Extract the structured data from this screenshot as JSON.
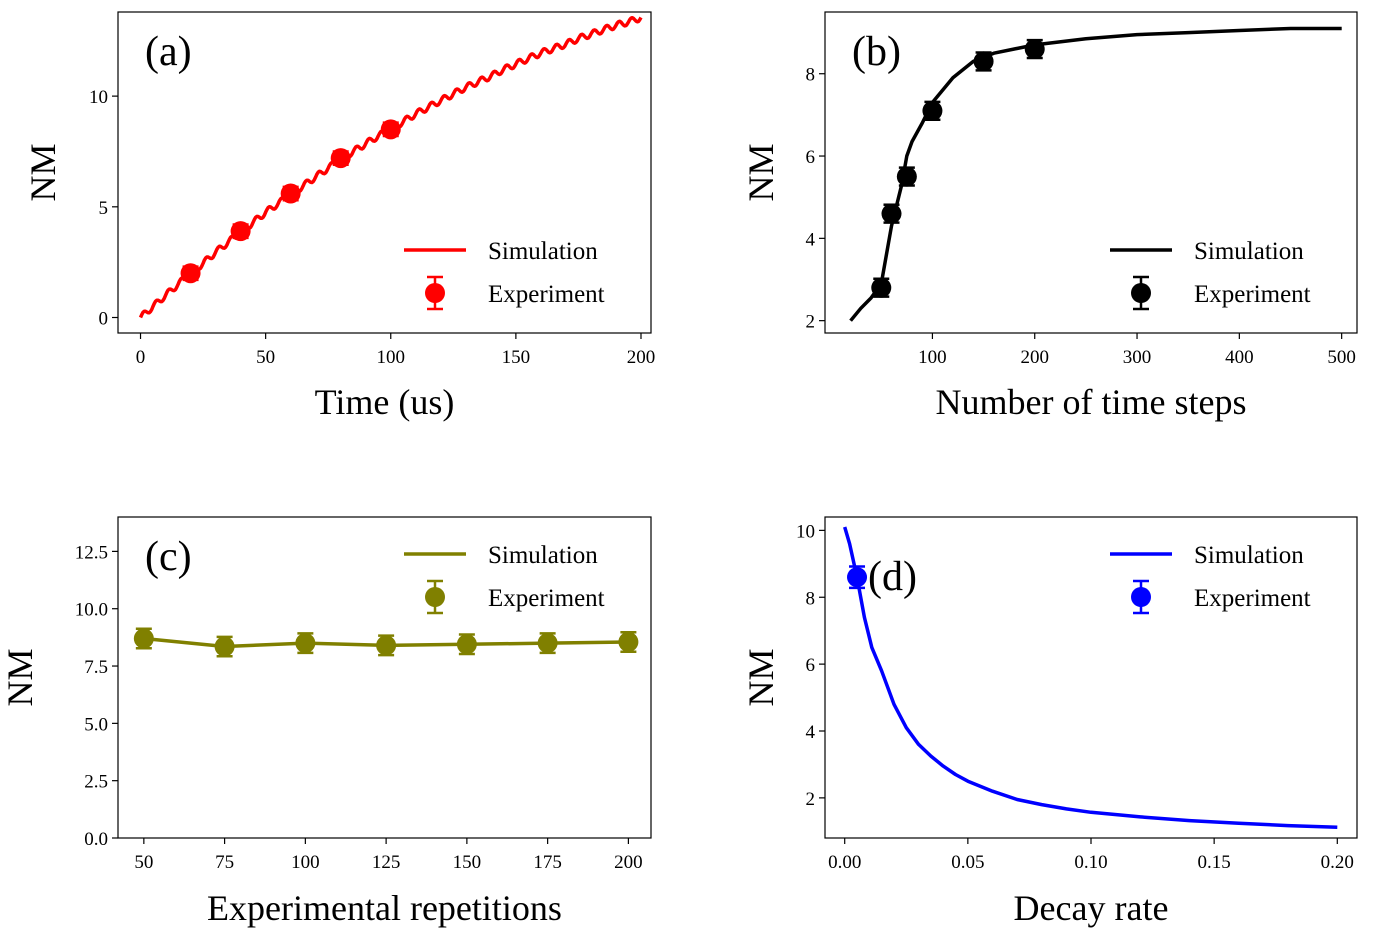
{
  "chart_data": [
    {
      "panel": "(a)",
      "type": "line",
      "xlabel": "Time (us)",
      "ylabel": "NM",
      "xlim": [
        -9,
        204
      ],
      "ylim": [
        -0.7,
        13.8
      ],
      "xticks": [
        0,
        50,
        100,
        150,
        200
      ],
      "yticks": [
        0,
        5,
        10
      ],
      "tick_decimals": 0,
      "color": "#ff0000",
      "legend_position": "lower-right",
      "simulation_x": [
        0,
        5,
        10,
        15,
        20,
        25,
        30,
        35,
        40,
        45,
        50,
        55,
        60,
        65,
        70,
        75,
        80,
        85,
        90,
        95,
        100,
        105,
        110,
        115,
        120,
        125,
        130,
        135,
        140,
        145,
        150,
        155,
        160,
        165,
        170,
        175,
        180,
        185,
        190,
        195,
        200
      ],
      "simulation_y": [
        0,
        0.5,
        1.0,
        1.5,
        2.0,
        2.45,
        2.95,
        3.4,
        3.85,
        4.3,
        4.75,
        5.15,
        5.55,
        5.95,
        6.35,
        6.75,
        7.15,
        7.5,
        7.85,
        8.2,
        8.5,
        8.85,
        9.2,
        9.5,
        9.8,
        10.1,
        10.4,
        10.65,
        10.9,
        11.2,
        11.45,
        11.7,
        11.95,
        12.15,
        12.35,
        12.6,
        12.8,
        13.0,
        13.2,
        13.35,
        13.55
      ],
      "wiggle": 0.14,
      "experiment_x": [
        20,
        40,
        60,
        80,
        100
      ],
      "experiment_y": [
        2.0,
        3.9,
        5.6,
        7.2,
        8.5
      ],
      "experiment_err": [
        0.12,
        0.12,
        0.12,
        0.12,
        0.12
      ]
    },
    {
      "panel": "(b)",
      "type": "line",
      "xlabel": "Number of time steps",
      "ylabel": "NM",
      "xlim": [
        -5,
        515
      ],
      "ylim": [
        1.7,
        9.5
      ],
      "xticks": [
        100,
        200,
        300,
        400,
        500
      ],
      "yticks": [
        2,
        4,
        6,
        8
      ],
      "tick_decimals": 0,
      "color": "#000000",
      "legend_position": "lower-right",
      "simulation_x": [
        20,
        30,
        40,
        50,
        60,
        70,
        75,
        80,
        90,
        100,
        120,
        140,
        160,
        180,
        200,
        250,
        300,
        350,
        400,
        450,
        500
      ],
      "simulation_y": [
        2.0,
        2.3,
        2.55,
        2.9,
        4.3,
        5.3,
        6.0,
        6.35,
        6.8,
        7.3,
        7.9,
        8.3,
        8.5,
        8.6,
        8.7,
        8.85,
        8.95,
        9.0,
        9.05,
        9.1,
        9.1
      ],
      "wiggle": 0,
      "experiment_x": [
        50,
        60,
        75,
        100,
        150,
        200
      ],
      "experiment_y": [
        2.8,
        4.6,
        5.5,
        7.1,
        8.3,
        8.6
      ],
      "experiment_err": [
        0.12,
        0.12,
        0.12,
        0.12,
        0.12,
        0.12
      ]
    },
    {
      "panel": "(c)",
      "type": "line",
      "xlabel": "Experimental repetitions",
      "ylabel": "NM",
      "xlim": [
        42,
        207
      ],
      "ylim": [
        0,
        14
      ],
      "xticks": [
        50,
        75,
        100,
        125,
        150,
        175,
        200
      ],
      "yticks": [
        0.0,
        2.5,
        5.0,
        7.5,
        10.0,
        12.5
      ],
      "tick_decimals": 1,
      "color": "#808000",
      "legend_position": "upper-right",
      "simulation_x": [
        50,
        75,
        100,
        125,
        150,
        175,
        200
      ],
      "simulation_y": [
        8.7,
        8.35,
        8.5,
        8.4,
        8.45,
        8.5,
        8.55
      ],
      "wiggle": 0,
      "experiment_x": [
        50,
        75,
        100,
        125,
        150,
        175,
        200
      ],
      "experiment_y": [
        8.7,
        8.35,
        8.5,
        8.4,
        8.45,
        8.5,
        8.55
      ],
      "experiment_err": [
        0.25,
        0.25,
        0.25,
        0.25,
        0.25,
        0.25,
        0.25
      ]
    },
    {
      "panel": "(d)",
      "type": "line",
      "xlabel": "Decay rate",
      "ylabel": "NM",
      "xlim": [
        -0.008,
        0.208
      ],
      "ylim": [
        0.8,
        10.4
      ],
      "xticks": [
        0.0,
        0.05,
        0.1,
        0.15,
        0.2
      ],
      "yticks": [
        2,
        4,
        6,
        8,
        10
      ],
      "tick_decimals": 0,
      "xtick_decimals": 2,
      "color": "#0000ff",
      "legend_position": "upper-right",
      "simulation_x": [
        0,
        0.002,
        0.005,
        0.008,
        0.011,
        0.015,
        0.02,
        0.025,
        0.03,
        0.035,
        0.04,
        0.045,
        0.05,
        0.06,
        0.07,
        0.08,
        0.09,
        0.1,
        0.12,
        0.14,
        0.16,
        0.18,
        0.2
      ],
      "simulation_y": [
        10.1,
        9.6,
        8.6,
        7.4,
        6.5,
        5.8,
        4.8,
        4.1,
        3.6,
        3.25,
        2.95,
        2.7,
        2.5,
        2.2,
        1.95,
        1.8,
        1.67,
        1.57,
        1.43,
        1.32,
        1.24,
        1.17,
        1.12
      ],
      "wiggle": 0,
      "experiment_x": [
        0.005
      ],
      "experiment_y": [
        8.6
      ],
      "experiment_err": [
        0.2
      ]
    }
  ],
  "legend": {
    "simulation_label": "Simulation",
    "experiment_label": "Experiment"
  }
}
